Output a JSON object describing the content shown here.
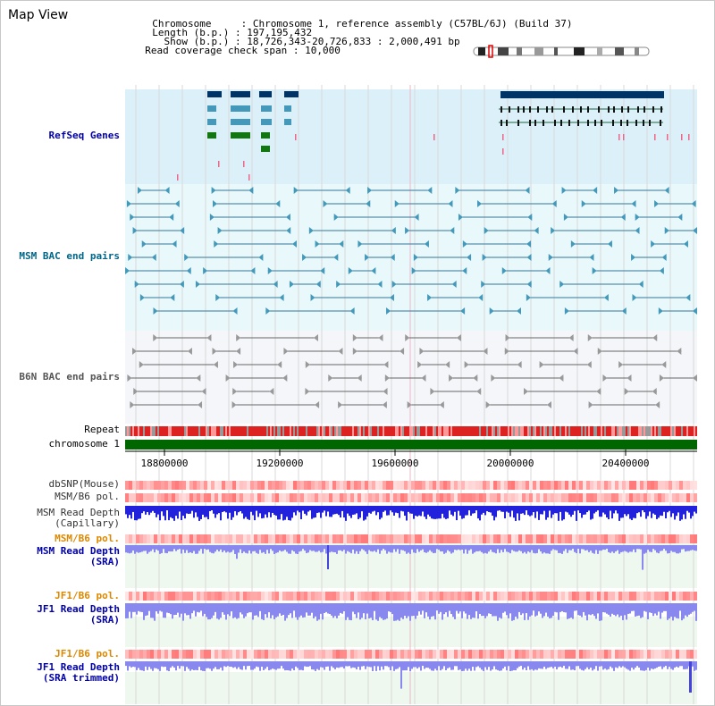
{
  "header": {
    "title": "Map View",
    "info": [
      {
        "key": "Chromosome    ",
        "value": "Chromosome 1, reference assembly (C57BL/6J) (Build 37)"
      },
      {
        "key": "Length (b.p.)",
        "value": "197,195,432"
      },
      {
        "key": "  Show (b.p.)",
        "value": "18,726,343-20,726,833 : 2,000,491 bp"
      },
      {
        "key": "Read coverage check span",
        "value": "10,000"
      }
    ]
  },
  "tracks": {
    "refseq": {
      "label": "RefSeq Genes",
      "color": "#0000aa"
    },
    "msm_bac": {
      "label": "MSM BAC end pairs",
      "color": "#006688"
    },
    "b6n_bac": {
      "label": "B6N BAC end pairs",
      "color": "#555555"
    },
    "repeat": {
      "label": "Repeat"
    },
    "chromosome": {
      "label": "chromosome 1",
      "color": "#006600"
    },
    "dbsnp": {
      "label": "dbSNP(Mouse)",
      "color": "#333333"
    },
    "msm_b6_pol": {
      "label": "MSM/B6 pol.",
      "color": "#333333"
    },
    "msm_depth_cap": {
      "line1": "MSM Read Depth",
      "line2": "(Capillary)",
      "color": "#333333"
    },
    "msm_b6_pol_sra": {
      "label": "MSM/B6 pol.",
      "color": "#dd8800"
    },
    "msm_depth_sra": {
      "line1": "MSM Read Depth",
      "line2": "(SRA)",
      "color": "#0000aa"
    },
    "jf1_b6_pol": {
      "label": "JF1/B6 pol.",
      "color": "#dd8800"
    },
    "jf1_depth_sra": {
      "line1": "JF1 Read Depth",
      "line2": "(SRA)",
      "color": "#0000aa"
    },
    "jf1_b6_pol_trim": {
      "label": "JF1/B6 pol.",
      "color": "#dd8800"
    },
    "jf1_depth_trim": {
      "line1": "JF1 Read Depth",
      "line2": "(SRA trimmed)",
      "color": "#0000aa"
    }
  },
  "axis": {
    "ticks": [
      "18800000",
      "19200000",
      "19600000",
      "20000000",
      "20400000"
    ]
  },
  "colors": {
    "refseq_bg": "#dcf0fa",
    "msm_bg": "#e8f8fb",
    "b6n_bg": "#f4f6fa",
    "depth_bg": "#eef8ee",
    "gene_dark": "#003366",
    "gene_mid": "#4499bb",
    "gene_green": "#117711",
    "pol_red": "#ee4444",
    "depth_blue": "#2222dd",
    "depth_light": "#8888ee"
  }
}
